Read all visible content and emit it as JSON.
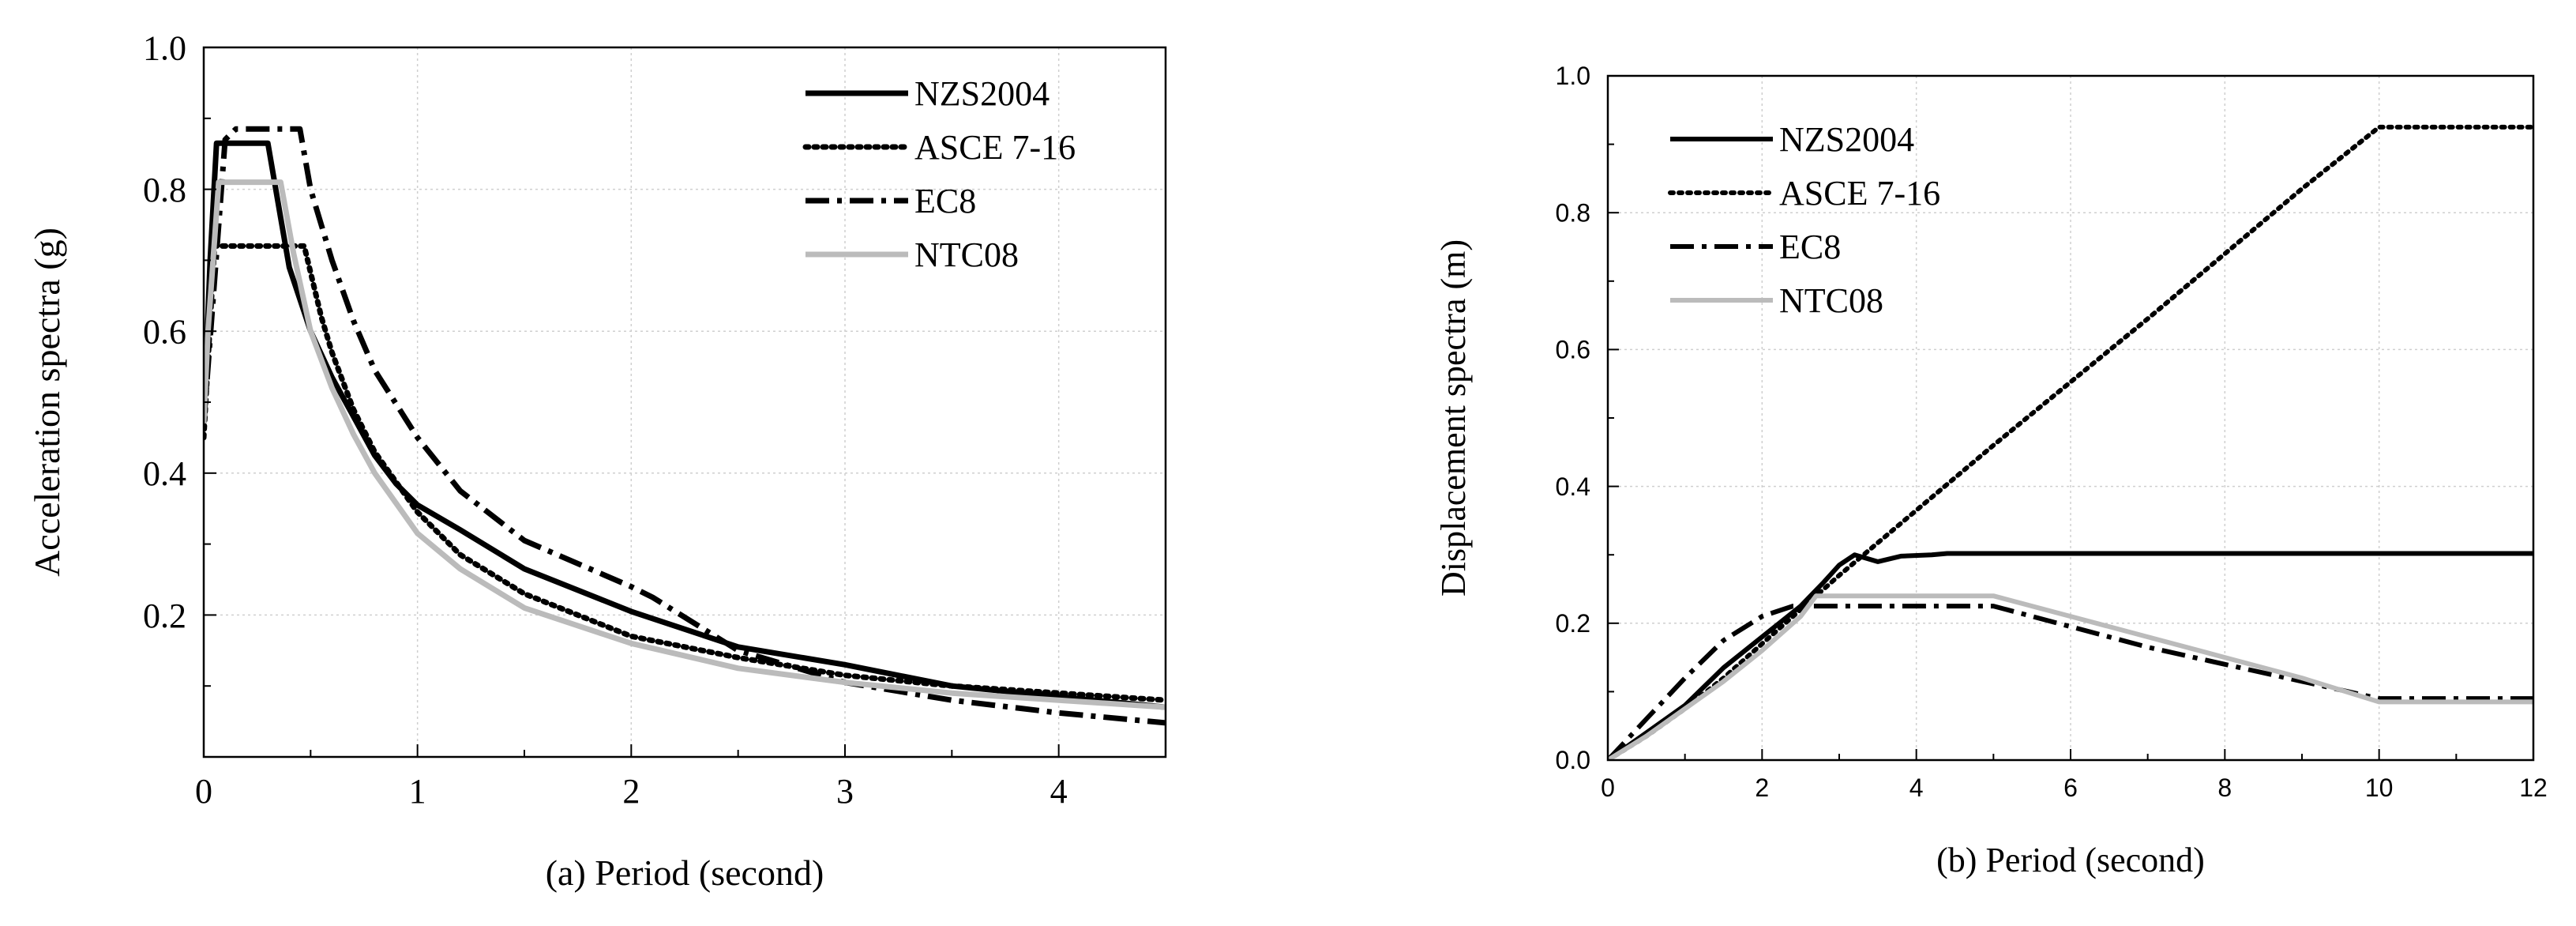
{
  "chart_data": [
    {
      "type": "line",
      "xlabel": "(a) Period (second)",
      "ylabel": "Acceleration spectra (g)",
      "xlim": [
        0,
        4.5
      ],
      "ylim": [
        0,
        1.0
      ],
      "xticks": [
        0,
        1,
        2,
        3,
        4
      ],
      "yticks": [
        0.2,
        0.4,
        0.6,
        0.8,
        1.0
      ],
      "xtick_labels": [
        "0",
        "1",
        "2",
        "3",
        "4"
      ],
      "ytick_labels": [
        "0.2",
        "0.4",
        "0.6",
        "0.8",
        "1.0"
      ],
      "grid": true,
      "legend_position": "top-right",
      "series": [
        {
          "name": "NZS2004",
          "style": "solid",
          "color": "#000000",
          "points": [
            [
              0,
              0.47
            ],
            [
              0.03,
              0.7
            ],
            [
              0.06,
              0.865
            ],
            [
              0.3,
              0.865
            ],
            [
              0.36,
              0.76
            ],
            [
              0.4,
              0.69
            ],
            [
              0.5,
              0.6
            ],
            [
              0.6,
              0.535
            ],
            [
              0.7,
              0.48
            ],
            [
              0.8,
              0.425
            ],
            [
              0.9,
              0.385
            ],
            [
              1.0,
              0.355
            ],
            [
              1.2,
              0.32
            ],
            [
              1.5,
              0.265
            ],
            [
              2.0,
              0.205
            ],
            [
              2.5,
              0.155
            ],
            [
              3.0,
              0.13
            ],
            [
              3.5,
              0.1
            ],
            [
              4.0,
              0.085
            ],
            [
              4.5,
              0.07
            ]
          ]
        },
        {
          "name": "ASCE 7-16",
          "style": "dotted",
          "color": "#000000",
          "points": [
            [
              0,
              0.45
            ],
            [
              0.05,
              0.72
            ],
            [
              0.47,
              0.72
            ],
            [
              0.55,
              0.62
            ],
            [
              0.6,
              0.57
            ],
            [
              0.7,
              0.49
            ],
            [
              0.8,
              0.43
            ],
            [
              1.0,
              0.345
            ],
            [
              1.2,
              0.285
            ],
            [
              1.5,
              0.23
            ],
            [
              2.0,
              0.17
            ],
            [
              2.5,
              0.14
            ],
            [
              3.0,
              0.115
            ],
            [
              3.5,
              0.1
            ],
            [
              4.0,
              0.09
            ],
            [
              4.5,
              0.08
            ]
          ]
        },
        {
          "name": "EC8",
          "style": "dashdot",
          "color": "#000000",
          "points": [
            [
              0,
              0.47
            ],
            [
              0.1,
              0.87
            ],
            [
              0.15,
              0.885
            ],
            [
              0.45,
              0.885
            ],
            [
              0.5,
              0.8
            ],
            [
              0.6,
              0.7
            ],
            [
              0.7,
              0.615
            ],
            [
              0.8,
              0.545
            ],
            [
              1.0,
              0.45
            ],
            [
              1.2,
              0.375
            ],
            [
              1.5,
              0.305
            ],
            [
              2.0,
              0.24
            ],
            [
              2.1,
              0.225
            ],
            [
              2.5,
              0.15
            ],
            [
              3.0,
              0.105
            ],
            [
              3.5,
              0.08
            ],
            [
              4.0,
              0.062
            ],
            [
              4.5,
              0.048
            ]
          ]
        },
        {
          "name": "NTC08",
          "style": "solid",
          "color": "#bbbbbb",
          "points": [
            [
              0,
              0.47
            ],
            [
              0.02,
              0.6
            ],
            [
              0.07,
              0.81
            ],
            [
              0.36,
              0.81
            ],
            [
              0.42,
              0.71
            ],
            [
              0.5,
              0.6
            ],
            [
              0.6,
              0.52
            ],
            [
              0.7,
              0.455
            ],
            [
              0.8,
              0.4
            ],
            [
              1.0,
              0.315
            ],
            [
              1.2,
              0.265
            ],
            [
              1.5,
              0.21
            ],
            [
              2.0,
              0.16
            ],
            [
              2.5,
              0.125
            ],
            [
              3.0,
              0.105
            ],
            [
              3.5,
              0.09
            ],
            [
              4.0,
              0.08
            ],
            [
              4.5,
              0.07
            ]
          ]
        }
      ]
    },
    {
      "type": "line",
      "xlabel": "(b) Period (second)",
      "ylabel": "Displacement spectra (m)",
      "xlim": [
        0,
        12
      ],
      "ylim": [
        0,
        1.0
      ],
      "xticks": [
        0,
        2,
        4,
        6,
        8,
        10,
        12
      ],
      "yticks": [
        0.0,
        0.2,
        0.4,
        0.6,
        0.8,
        1.0
      ],
      "xtick_labels": [
        "0",
        "2",
        "4",
        "6",
        "8",
        "10",
        "12"
      ],
      "ytick_labels": [
        "0.0",
        "0.2",
        "0.4",
        "0.6",
        "0.8",
        "1.0"
      ],
      "grid": true,
      "legend_position": "top-left",
      "series": [
        {
          "name": "NZS2004",
          "style": "solid",
          "color": "#000000",
          "points": [
            [
              0,
              0
            ],
            [
              0.5,
              0.04
            ],
            [
              1,
              0.08
            ],
            [
              1.5,
              0.135
            ],
            [
              2,
              0.18
            ],
            [
              2.5,
              0.225
            ],
            [
              2.8,
              0.26
            ],
            [
              3.0,
              0.285
            ],
            [
              3.2,
              0.3
            ],
            [
              3.5,
              0.29
            ],
            [
              3.8,
              0.298
            ],
            [
              4.2,
              0.3
            ],
            [
              4.4,
              0.302
            ],
            [
              12,
              0.302
            ]
          ]
        },
        {
          "name": "ASCE 7-16",
          "style": "dotted",
          "color": "#000000",
          "points": [
            [
              0,
              0
            ],
            [
              0.5,
              0.035
            ],
            [
              1,
              0.075
            ],
            [
              1.5,
              0.12
            ],
            [
              2,
              0.17
            ],
            [
              3,
              0.27
            ],
            [
              5,
              0.46
            ],
            [
              7,
              0.645
            ],
            [
              9,
              0.835
            ],
            [
              10,
              0.925
            ],
            [
              12,
              0.925
            ]
          ]
        },
        {
          "name": "EC8",
          "style": "dashdot",
          "color": "#000000",
          "points": [
            [
              0,
              0
            ],
            [
              0.5,
              0.06
            ],
            [
              1,
              0.12
            ],
            [
              1.5,
              0.175
            ],
            [
              2,
              0.21
            ],
            [
              2.4,
              0.225
            ],
            [
              5,
              0.225
            ],
            [
              6,
              0.195
            ],
            [
              7,
              0.165
            ],
            [
              8,
              0.14
            ],
            [
              9,
              0.115
            ],
            [
              10,
              0.09
            ],
            [
              12,
              0.09
            ]
          ]
        },
        {
          "name": "NTC08",
          "style": "solid",
          "color": "#bbbbbb",
          "points": [
            [
              0,
              0
            ],
            [
              0.5,
              0.035
            ],
            [
              1,
              0.075
            ],
            [
              1.5,
              0.115
            ],
            [
              2,
              0.16
            ],
            [
              2.5,
              0.21
            ],
            [
              2.7,
              0.24
            ],
            [
              5,
              0.24
            ],
            [
              6,
              0.21
            ],
            [
              7,
              0.18
            ],
            [
              8,
              0.15
            ],
            [
              9,
              0.12
            ],
            [
              10,
              0.085
            ],
            [
              12,
              0.085
            ]
          ]
        }
      ]
    }
  ]
}
